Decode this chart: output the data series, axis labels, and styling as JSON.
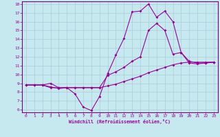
{
  "xlabel": "Windchill (Refroidissement éolien,°C)",
  "bg_color": "#c6e8ef",
  "grid_color": "#aacdd6",
  "line_color": "#990099",
  "spine_color": "#7a007a",
  "xmin": 0,
  "xmax": 23,
  "ymin": 6,
  "ymax": 18,
  "line1_x": [
    0,
    1,
    2,
    3,
    4,
    5,
    6,
    7,
    8,
    9,
    10,
    11,
    12,
    13,
    14,
    15,
    16,
    17,
    18,
    19,
    20,
    21,
    22,
    23
  ],
  "line1_y": [
    8.8,
    8.8,
    8.8,
    8.6,
    8.4,
    8.5,
    8.5,
    8.5,
    8.5,
    8.5,
    8.7,
    8.9,
    9.2,
    9.5,
    9.8,
    10.2,
    10.5,
    10.8,
    11.1,
    11.3,
    11.4,
    11.4,
    11.4,
    11.4
  ],
  "line2_x": [
    0,
    1,
    2,
    3,
    4,
    5,
    6,
    7,
    8,
    9,
    10,
    11,
    12,
    13,
    14,
    15,
    16,
    17,
    18,
    19,
    20,
    21,
    22,
    23
  ],
  "line2_y": [
    8.8,
    8.8,
    8.8,
    8.5,
    8.5,
    8.5,
    7.8,
    6.3,
    5.9,
    7.5,
    10.1,
    12.2,
    14.1,
    17.1,
    17.2,
    18.0,
    16.5,
    17.2,
    16.0,
    12.5,
    11.3,
    11.2,
    11.3,
    11.4
  ],
  "line3_x": [
    0,
    1,
    2,
    3,
    4,
    5,
    6,
    7,
    8,
    9,
    10,
    11,
    12,
    13,
    14,
    15,
    16,
    17,
    18,
    19,
    20,
    21,
    22,
    23
  ],
  "line3_y": [
    8.8,
    8.8,
    8.8,
    9.0,
    8.5,
    8.5,
    8.5,
    8.5,
    8.5,
    8.5,
    9.9,
    10.3,
    10.8,
    11.5,
    12.0,
    15.0,
    15.8,
    15.0,
    12.3,
    12.5,
    11.5,
    11.3,
    11.3,
    11.4
  ],
  "yticks": [
    6,
    7,
    8,
    9,
    10,
    11,
    12,
    13,
    14,
    15,
    16,
    17,
    18
  ],
  "xticks": [
    0,
    1,
    2,
    3,
    4,
    5,
    6,
    7,
    8,
    9,
    10,
    11,
    12,
    13,
    14,
    15,
    16,
    17,
    18,
    19,
    20,
    21,
    22,
    23
  ],
  "markersize": 2.0,
  "linewidth": 0.8
}
